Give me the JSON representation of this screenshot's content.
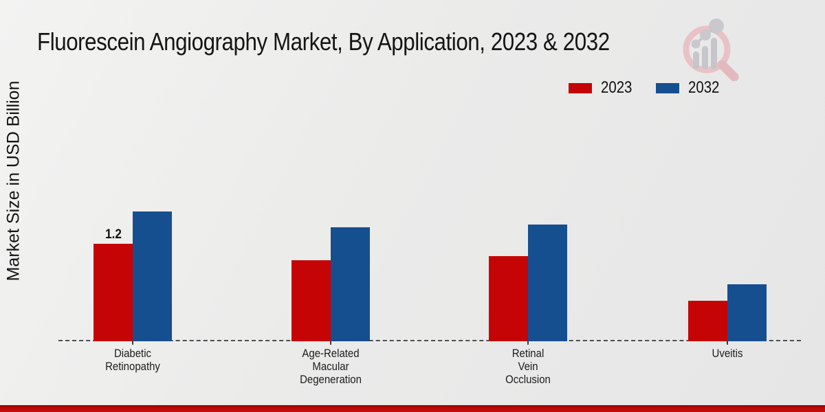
{
  "title": "Fluorescein Angiography Market, By Application, 2023 & 2032",
  "ylabel": "Market Size in USD Billion",
  "chart_data": {
    "type": "bar",
    "categories": [
      "Diabetic Retinopathy",
      "Age-Related Macular Degeneration",
      "Retinal Vein Occlusion",
      "Uveitis"
    ],
    "series": [
      {
        "name": "2023",
        "color": "#c50505",
        "values": [
          1.2,
          1.0,
          1.05,
          0.5
        ]
      },
      {
        "name": "2032",
        "color": "#164f90",
        "values": [
          1.6,
          1.4,
          1.44,
          0.7
        ]
      }
    ],
    "annotations": [
      {
        "series": "2023",
        "category_index": 0,
        "text": "1.2"
      }
    ],
    "ylim": [
      0,
      1.8
    ],
    "grid": false,
    "legend_position": "top-right",
    "axis_line_style": "dashed",
    "axis_line_color": "#4f4f4f"
  },
  "watermark": {
    "name": "magnifier-bar-chart-logo",
    "ring_color": "#e8c2c7",
    "chart_color": "#c6c6ca"
  },
  "footer": {
    "color": "#bd0707"
  }
}
